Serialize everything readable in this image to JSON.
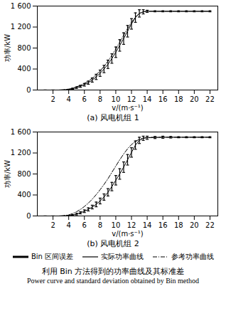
{
  "chart_data": [
    {
      "type": "line",
      "subtitle": "(a) 风电机组 1",
      "x_label": "v/(m·s⁻¹)",
      "y_label": "功率/kW",
      "xlim": [
        0,
        23
      ],
      "xticks": [
        2,
        4,
        6,
        8,
        10,
        12,
        14,
        16,
        18,
        20,
        22
      ],
      "ylim": [
        0,
        1600
      ],
      "yticks": [
        0,
        400,
        800,
        {
          "value": 1200,
          "label": "1 200"
        },
        {
          "value": 1600,
          "label": "1 600"
        }
      ],
      "x": [
        1,
        2,
        3,
        4,
        4.5,
        5,
        5.5,
        6,
        6.5,
        7,
        7.5,
        8,
        8.5,
        9,
        9.5,
        10,
        10.5,
        11,
        11.5,
        12,
        12.5,
        13,
        13.5,
        14,
        15,
        16,
        17,
        18,
        19,
        20,
        21,
        22
      ],
      "series": [
        {
          "name": "实际功率曲线",
          "color": "#000000",
          "line_style": "solid",
          "error_name": "Bin 区间误差",
          "values": [
            0,
            0,
            0,
            10,
            25,
            45,
            70,
            100,
            140,
            190,
            250,
            320,
            400,
            490,
            600,
            720,
            850,
            980,
            1120,
            1260,
            1380,
            1460,
            1490,
            1500,
            1500,
            1500,
            1500,
            1500,
            1500,
            1500,
            1500,
            1500
          ],
          "errors": [
            0,
            0,
            0,
            5,
            10,
            15,
            20,
            25,
            30,
            40,
            50,
            60,
            70,
            80,
            90,
            100,
            110,
            110,
            110,
            100,
            90,
            70,
            40,
            20,
            10,
            10,
            10,
            10,
            10,
            10,
            10,
            10
          ]
        },
        {
          "name": "参考功率曲线",
          "color": "#000000",
          "line_style": "dashdot",
          "values": [
            0,
            0,
            0,
            15,
            35,
            60,
            90,
            125,
            170,
            225,
            290,
            365,
            450,
            550,
            660,
            780,
            910,
            1040,
            1170,
            1290,
            1390,
            1460,
            1490,
            1500,
            1500,
            1500,
            1500,
            1500,
            1500,
            1500,
            1500,
            1500
          ]
        }
      ]
    },
    {
      "type": "line",
      "subtitle": "(b) 风电机组 2",
      "x_label": "v/(m·s⁻¹)",
      "y_label": "功率/kW",
      "xlim": [
        0,
        23
      ],
      "xticks": [
        2,
        4,
        6,
        8,
        10,
        12,
        14,
        16,
        18,
        20,
        22
      ],
      "ylim": [
        0,
        1600
      ],
      "yticks": [
        0,
        400,
        800,
        {
          "value": 1200,
          "label": "1 200"
        },
        {
          "value": 1600,
          "label": "1 600"
        }
      ],
      "x": [
        1,
        2,
        3,
        4,
        4.5,
        5,
        5.5,
        6,
        6.5,
        7,
        7.5,
        8,
        8.5,
        9,
        9.5,
        10,
        10.5,
        11,
        11.5,
        12,
        12.5,
        13,
        13.5,
        14,
        15,
        16,
        17,
        18,
        19,
        20,
        21,
        22
      ],
      "series": [
        {
          "name": "实际功率曲线",
          "color": "#000000",
          "line_style": "solid",
          "error_name": "Bin 区间误差",
          "values": [
            0,
            0,
            0,
            5,
            15,
            35,
            60,
            90,
            125,
            170,
            220,
            285,
            360,
            450,
            560,
            680,
            800,
            930,
            1070,
            1210,
            1350,
            1440,
            1480,
            1490,
            1495,
            1500,
            1500,
            1500,
            1500,
            1500,
            1500,
            1500
          ],
          "errors": [
            0,
            0,
            0,
            5,
            10,
            15,
            20,
            25,
            30,
            35,
            45,
            55,
            60,
            70,
            80,
            90,
            100,
            100,
            100,
            90,
            80,
            60,
            40,
            30,
            20,
            20,
            15,
            10,
            10,
            10,
            10,
            10
          ]
        },
        {
          "name": "参考功率曲线",
          "color": "#000000",
          "line_style": "dashdot",
          "values": [
            0,
            0,
            0,
            20,
            45,
            80,
            125,
            180,
            245,
            320,
            405,
            500,
            600,
            710,
            830,
            950,
            1070,
            1180,
            1280,
            1360,
            1420,
            1460,
            1485,
            1495,
            1500,
            1500,
            1500,
            1500,
            1500,
            1500,
            1500,
            1500
          ]
        }
      ]
    }
  ],
  "caption": {
    "zh": "利用 Bin 方法得到的功率曲线及其标准差",
    "en": "Power curve and standard deviation obtained by Bin method"
  }
}
